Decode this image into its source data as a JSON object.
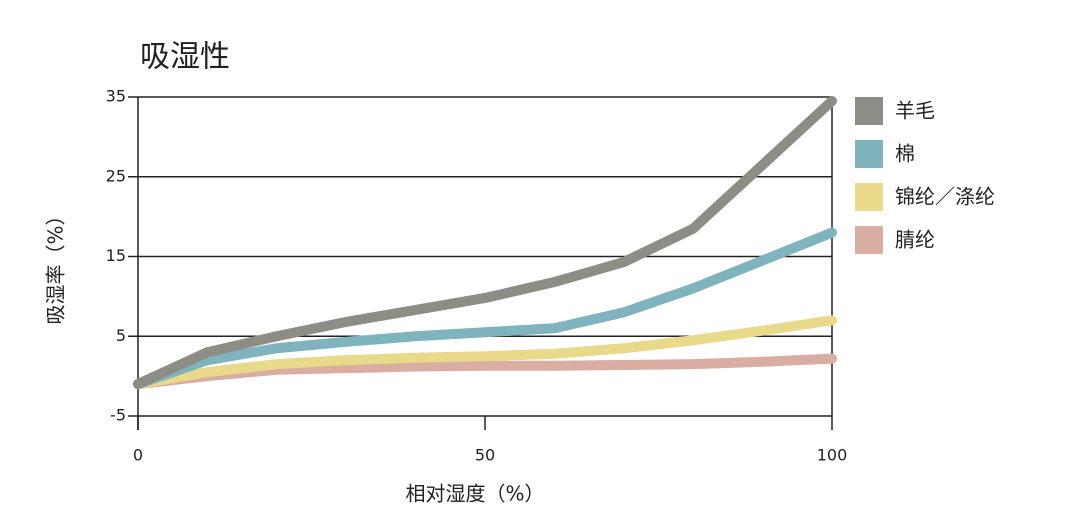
{
  "chart_data": {
    "type": "line",
    "title": "吸湿性",
    "x_label": "相对湿度（%）",
    "y_label": "吸湿率（%）",
    "x": [
      0,
      10,
      20,
      30,
      40,
      50,
      60,
      70,
      80,
      90,
      100
    ],
    "series": [
      {
        "name": "羊毛",
        "color": "#8e8d85",
        "values": [
          -1,
          3,
          5,
          6.8,
          8.3,
          9.8,
          11.8,
          14.3,
          18.5,
          26.5,
          34.5
        ]
      },
      {
        "name": "棉",
        "color": "#7fb3be",
        "values": [
          -1,
          2,
          3.5,
          4.3,
          5,
          5.5,
          6,
          8,
          11,
          14.5,
          18
        ]
      },
      {
        "name": "锦纶／涤纶",
        "color": "#e9d98b",
        "values": [
          -1,
          0.5,
          1.5,
          2,
          2.3,
          2.5,
          2.8,
          3.5,
          4.5,
          5.7,
          7
        ]
      },
      {
        "name": "腈纶",
        "color": "#d9ada2",
        "values": [
          -1,
          0,
          0.8,
          1,
          1.2,
          1.3,
          1.3,
          1.4,
          1.5,
          1.8,
          2.2
        ]
      }
    ],
    "xlim": [
      0,
      100
    ],
    "xticks": [
      0,
      50,
      100
    ],
    "ylim": [
      -5,
      35
    ],
    "yticks": [
      -5,
      5,
      15,
      25,
      35
    ],
    "grid": true,
    "legend": "right"
  }
}
